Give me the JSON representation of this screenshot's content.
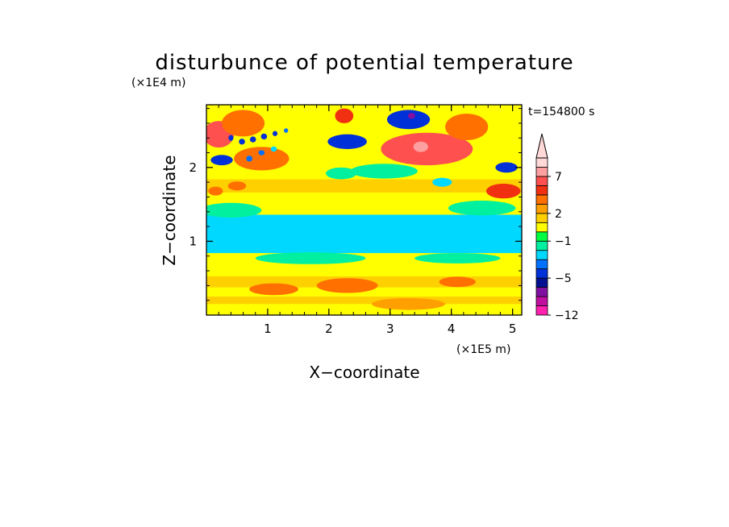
{
  "chart_data": {
    "type": "heatmap",
    "title": "disturbunce of potential temperature",
    "xlabel": "X−coordinate",
    "ylabel": "Z−coordinate",
    "x_unit": "(×1E5 m)",
    "y_unit": "(×1E4 m)",
    "time_label": "t=154800 s",
    "xlim": [
      0,
      5.15
    ],
    "ylim": [
      0,
      2.85
    ],
    "x_ticks": [
      1,
      2,
      3,
      4,
      5
    ],
    "y_ticks": [
      1,
      2
    ],
    "x_tick_labels": [
      "1",
      "2",
      "3",
      "4",
      "5"
    ],
    "y_tick_labels": [
      "1",
      "2"
    ],
    "colorbar": {
      "levels": [
        -12,
        -11,
        -9,
        -7,
        -5,
        -4,
        -3,
        -2,
        -1,
        0,
        1,
        2,
        3,
        4,
        5,
        7,
        9,
        11
      ],
      "colors": [
        "#ff20b0",
        "#c010a0",
        "#8010a0",
        "#001090",
        "#0030d8",
        "#0070ff",
        "#00d8ff",
        "#00f0a0",
        "#00ff40",
        "#ffff00",
        "#ffd000",
        "#ffa000",
        "#ff7000",
        "#f03010",
        "#ff5050",
        "#ffa0a0",
        "#ffd8d8"
      ],
      "labels": [
        {
          "value": -12,
          "text": "−12"
        },
        {
          "value": -5,
          "text": "−5"
        },
        {
          "value": -1,
          "text": "−1"
        },
        {
          "value": 2,
          "text": "2"
        },
        {
          "value": 7,
          "text": "7"
        }
      ],
      "extend": "max"
    },
    "features": [
      {
        "x": 2.6,
        "z": 1.07,
        "value": -5,
        "type": "band",
        "width": 9,
        "thick": 0.24
      },
      {
        "x": 2.6,
        "z": 1.1,
        "value": -4,
        "type": "band",
        "width": 9,
        "thick": 0.38
      },
      {
        "x": 2.6,
        "z": 1.1,
        "value": -3,
        "type": "band",
        "width": 9,
        "thick": 0.52
      },
      {
        "x": 2.6,
        "z": 0.45,
        "value": 1.6,
        "type": "band",
        "width": 9,
        "thick": 0.15
      },
      {
        "x": 2.6,
        "z": 0.2,
        "value": 1.2,
        "type": "band",
        "width": 9,
        "thick": 0.1
      },
      {
        "x": 2.5,
        "z": 1.75,
        "value": 1.5,
        "type": "band",
        "width": 9,
        "thick": 0.18
      },
      {
        "x": 3.3,
        "z": 2.65,
        "value": -5,
        "sx": 0.35,
        "sz": 0.13
      },
      {
        "x": 3.35,
        "z": 2.7,
        "value": -9,
        "sx": 0.06,
        "sz": 0.04
      },
      {
        "x": 2.3,
        "z": 2.35,
        "value": -5,
        "sx": 0.32,
        "sz": 0.1
      },
      {
        "x": 3.6,
        "z": 2.25,
        "value": 5,
        "sx": 0.75,
        "sz": 0.22
      },
      {
        "x": 3.5,
        "z": 2.28,
        "value": 7,
        "sx": 0.12,
        "sz": 0.07
      },
      {
        "x": 0.25,
        "z": 2.1,
        "value": -5,
        "sx": 0.18,
        "sz": 0.07
      },
      {
        "x": 0.2,
        "z": 2.45,
        "value": 5,
        "sx": 0.25,
        "sz": 0.18
      },
      {
        "x": 0.6,
        "z": 2.6,
        "value": 3,
        "sx": 0.35,
        "sz": 0.18
      },
      {
        "x": 0.9,
        "z": 2.12,
        "value": 3,
        "sx": 0.45,
        "sz": 0.16
      },
      {
        "x": 4.9,
        "z": 2.0,
        "value": -5,
        "sx": 0.18,
        "sz": 0.07
      },
      {
        "x": 4.85,
        "z": 1.68,
        "value": 4,
        "sx": 0.28,
        "sz": 0.1
      },
      {
        "x": 4.25,
        "z": 2.55,
        "value": 3,
        "sx": 0.35,
        "sz": 0.18
      },
      {
        "x": 3.85,
        "z": 1.8,
        "value": -3,
        "sx": 0.16,
        "sz": 0.06
      },
      {
        "x": 2.9,
        "z": 1.95,
        "value": -1.5,
        "sx": 0.55,
        "sz": 0.1
      },
      {
        "x": 2.2,
        "z": 1.92,
        "value": -1.5,
        "sx": 0.25,
        "sz": 0.08
      },
      {
        "x": 0.4,
        "z": 2.4,
        "value": -5,
        "sx": 0.04,
        "sz": 0.04
      },
      {
        "x": 0.58,
        "z": 2.35,
        "value": -5,
        "sx": 0.05,
        "sz": 0.04
      },
      {
        "x": 0.76,
        "z": 2.38,
        "value": -5,
        "sx": 0.05,
        "sz": 0.04
      },
      {
        "x": 0.94,
        "z": 2.42,
        "value": -5,
        "sx": 0.05,
        "sz": 0.04
      },
      {
        "x": 1.12,
        "z": 2.46,
        "value": -5,
        "sx": 0.04,
        "sz": 0.035
      },
      {
        "x": 1.3,
        "z": 2.5,
        "value": -4,
        "sx": 0.035,
        "sz": 0.03
      },
      {
        "x": 0.7,
        "z": 2.12,
        "value": -4,
        "sx": 0.05,
        "sz": 0.04
      },
      {
        "x": 0.9,
        "z": 2.2,
        "value": -4,
        "sx": 0.05,
        "sz": 0.035
      },
      {
        "x": 1.1,
        "z": 2.25,
        "value": -3,
        "sx": 0.05,
        "sz": 0.035
      },
      {
        "x": 0.15,
        "z": 1.68,
        "value": 3,
        "sx": 0.12,
        "sz": 0.06
      },
      {
        "x": 0.5,
        "z": 1.75,
        "value": 3,
        "sx": 0.15,
        "sz": 0.06
      },
      {
        "x": 2.3,
        "z": 0.4,
        "value": 3,
        "sx": 0.5,
        "sz": 0.1
      },
      {
        "x": 1.1,
        "z": 0.35,
        "value": 3,
        "sx": 0.4,
        "sz": 0.08
      },
      {
        "x": 4.1,
        "z": 0.45,
        "value": 3,
        "sx": 0.3,
        "sz": 0.07
      },
      {
        "x": 3.3,
        "z": 0.15,
        "value": 2,
        "sx": 0.6,
        "sz": 0.08
      },
      {
        "x": 2.25,
        "z": 2.7,
        "value": 4,
        "sx": 0.15,
        "sz": 0.1
      },
      {
        "x": 4.5,
        "z": 1.45,
        "value": -1.5,
        "sx": 0.55,
        "sz": 0.1
      },
      {
        "x": 0.4,
        "z": 1.42,
        "value": -1.5,
        "sx": 0.5,
        "sz": 0.1
      },
      {
        "x": 1.7,
        "z": 0.77,
        "value": -1.5,
        "sx": 0.9,
        "sz": 0.08
      },
      {
        "x": 4.1,
        "z": 0.77,
        "value": -1.5,
        "sx": 0.7,
        "sz": 0.07
      }
    ]
  }
}
